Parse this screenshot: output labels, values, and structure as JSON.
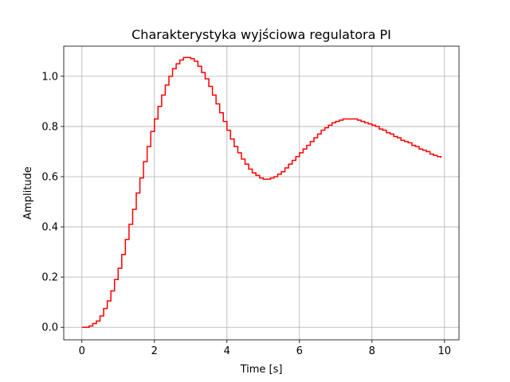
{
  "chart_data": {
    "type": "line",
    "step": "post",
    "title": "Charakterystyka wyjściowa regulatora PI",
    "xlabel": "Time [s]",
    "ylabel": "Amplitude",
    "xlim": [
      -0.5,
      10.4
    ],
    "ylim": [
      -0.05,
      1.12
    ],
    "xticks": [
      0,
      2,
      4,
      6,
      8,
      10
    ],
    "xtick_labels": [
      "0",
      "2",
      "4",
      "6",
      "8",
      "10"
    ],
    "yticks": [
      0.0,
      0.2,
      0.4,
      0.6,
      0.8,
      1.0
    ],
    "ytick_labels": [
      "0.0",
      "0.2",
      "0.4",
      "0.6",
      "0.8",
      "1.0"
    ],
    "grid": true,
    "series": [
      {
        "color": "#ff0000",
        "x": [
          0.0,
          0.1,
          0.2,
          0.3,
          0.4,
          0.5,
          0.6,
          0.7,
          0.8,
          0.9,
          1.0,
          1.1,
          1.2,
          1.3,
          1.4,
          1.5,
          1.6,
          1.7,
          1.8,
          1.9,
          2.0,
          2.1,
          2.2,
          2.3,
          2.4,
          2.5,
          2.6,
          2.7,
          2.8,
          2.9,
          3.0,
          3.1,
          3.2,
          3.3,
          3.4,
          3.5,
          3.6,
          3.7,
          3.8,
          3.9,
          4.0,
          4.1,
          4.2,
          4.3,
          4.4,
          4.5,
          4.6,
          4.7,
          4.8,
          4.9,
          5.0,
          5.1,
          5.2,
          5.3,
          5.4,
          5.5,
          5.6,
          5.7,
          5.8,
          5.9,
          6.0,
          6.1,
          6.2,
          6.3,
          6.4,
          6.5,
          6.6,
          6.7,
          6.8,
          6.9,
          7.0,
          7.1,
          7.2,
          7.3,
          7.4,
          7.5,
          7.6,
          7.7,
          7.8,
          7.9,
          8.0,
          8.1,
          8.2,
          8.3,
          8.4,
          8.5,
          8.6,
          8.7,
          8.8,
          8.9,
          9.0,
          9.1,
          9.2,
          9.3,
          9.4,
          9.5,
          9.6,
          9.7,
          9.8,
          9.9
        ],
        "y": [
          0.0,
          0.0,
          0.005,
          0.015,
          0.025,
          0.045,
          0.075,
          0.105,
          0.145,
          0.19,
          0.235,
          0.29,
          0.35,
          0.41,
          0.47,
          0.535,
          0.595,
          0.66,
          0.72,
          0.78,
          0.83,
          0.88,
          0.925,
          0.965,
          1.0,
          1.03,
          1.05,
          1.065,
          1.075,
          1.075,
          1.07,
          1.06,
          1.04,
          1.015,
          0.99,
          0.96,
          0.925,
          0.89,
          0.855,
          0.82,
          0.785,
          0.75,
          0.72,
          0.695,
          0.67,
          0.65,
          0.63,
          0.615,
          0.605,
          0.595,
          0.59,
          0.59,
          0.595,
          0.6,
          0.61,
          0.62,
          0.635,
          0.65,
          0.665,
          0.68,
          0.695,
          0.71,
          0.725,
          0.74,
          0.755,
          0.77,
          0.785,
          0.795,
          0.805,
          0.815,
          0.82,
          0.825,
          0.83,
          0.83,
          0.83,
          0.83,
          0.825,
          0.82,
          0.815,
          0.81,
          0.805,
          0.8,
          0.79,
          0.785,
          0.775,
          0.77,
          0.76,
          0.755,
          0.745,
          0.74,
          0.735,
          0.725,
          0.72,
          0.71,
          0.705,
          0.7,
          0.69,
          0.685,
          0.68,
          0.675
        ]
      }
    ]
  }
}
